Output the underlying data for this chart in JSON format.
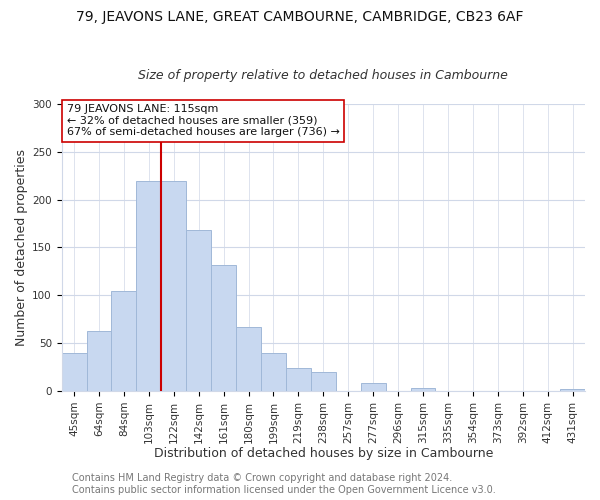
{
  "title1": "79, JEAVONS LANE, GREAT CAMBOURNE, CAMBRIDGE, CB23 6AF",
  "title2": "Size of property relative to detached houses in Cambourne",
  "xlabel": "Distribution of detached houses by size in Cambourne",
  "ylabel": "Number of detached properties",
  "bar_color": "#c8d8f0",
  "bar_edge_color": "#a0b8d8",
  "categories": [
    "45sqm",
    "64sqm",
    "84sqm",
    "103sqm",
    "122sqm",
    "142sqm",
    "161sqm",
    "180sqm",
    "199sqm",
    "219sqm",
    "238sqm",
    "257sqm",
    "277sqm",
    "296sqm",
    "315sqm",
    "335sqm",
    "354sqm",
    "373sqm",
    "392sqm",
    "412sqm",
    "431sqm"
  ],
  "values": [
    40,
    63,
    104,
    220,
    220,
    168,
    132,
    67,
    40,
    24,
    20,
    0,
    8,
    0,
    3,
    0,
    0,
    0,
    0,
    0,
    2
  ],
  "vline_index": 4,
  "vline_color": "#cc0000",
  "annotation_line1": "79 JEAVONS LANE: 115sqm",
  "annotation_line2": "← 32% of detached houses are smaller (359)",
  "annotation_line3": "67% of semi-detached houses are larger (736) →",
  "annotation_box_color": "#ffffff",
  "annotation_box_edge": "#cc0000",
  "footer1": "Contains HM Land Registry data © Crown copyright and database right 2024.",
  "footer2": "Contains public sector information licensed under the Open Government Licence v3.0.",
  "ylim": [
    0,
    300
  ],
  "yticks": [
    0,
    50,
    100,
    150,
    200,
    250,
    300
  ],
  "background_color": "#ffffff",
  "grid_color": "#d0d8e8",
  "title1_fontsize": 10,
  "title2_fontsize": 9,
  "axis_label_fontsize": 9,
  "tick_fontsize": 7.5,
  "footer_fontsize": 7
}
